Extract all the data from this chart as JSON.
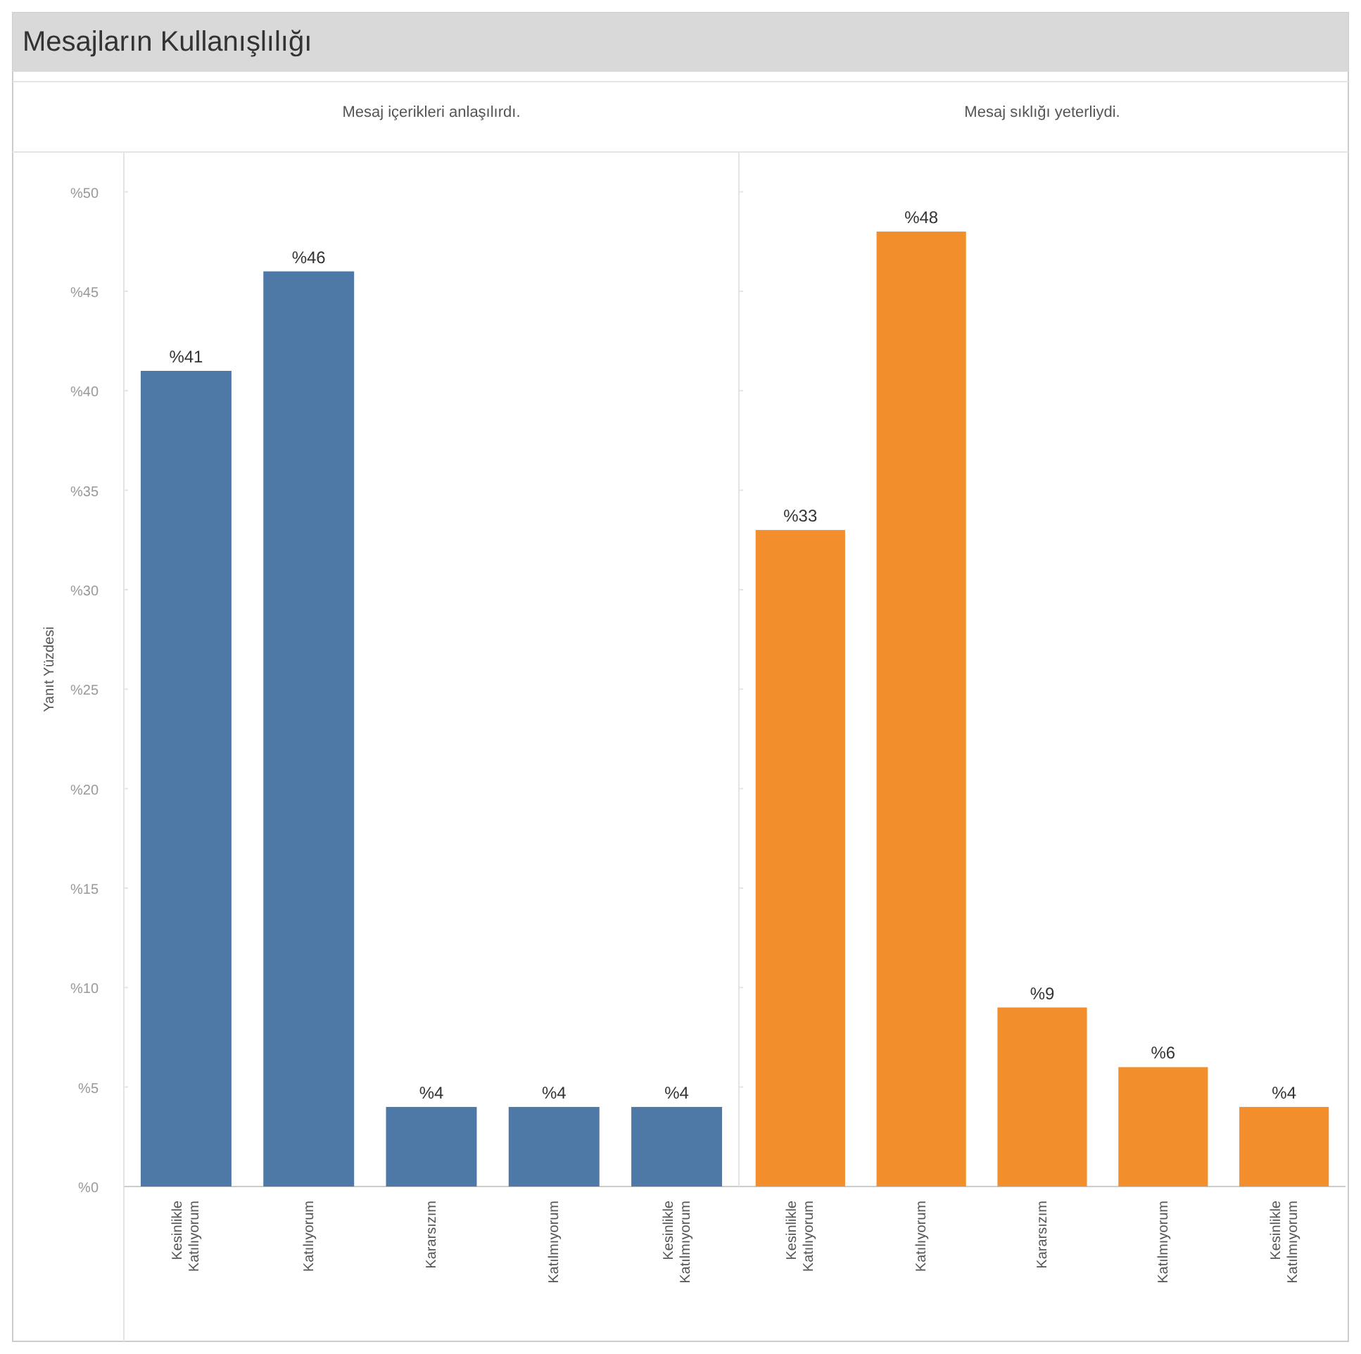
{
  "chart_data": [
    {
      "type": "bar",
      "title": "Mesaj içerikleri anlaşılırdı.",
      "ylabel": "Yanıt Yüzdesi",
      "annotations": [
        "Mesajların Kullanışlılığı"
      ],
      "categories": [
        "Kesinlikle Katılıyorum",
        "Katılıyorum",
        "Kararsızım",
        "Katılmıyorum",
        "Kesinlikle Katılmıyorum"
      ],
      "values": [
        41,
        46,
        4,
        4,
        4
      ],
      "value_labels": [
        "%41",
        "%46",
        "%4",
        "%4",
        "%4"
      ],
      "color": "#4e79a7",
      "ylim": [
        0,
        52
      ],
      "yticks": [
        {
          "value": 0,
          "label": "%0"
        },
        {
          "value": 5,
          "label": "%5"
        },
        {
          "value": 10,
          "label": "%10"
        },
        {
          "value": 15,
          "label": "%15"
        },
        {
          "value": 20,
          "label": "%20"
        },
        {
          "value": 25,
          "label": "%25"
        },
        {
          "value": 30,
          "label": "%30"
        },
        {
          "value": 35,
          "label": "%35"
        },
        {
          "value": 40,
          "label": "%40"
        },
        {
          "value": 45,
          "label": "%45"
        },
        {
          "value": 50,
          "label": "%50"
        }
      ]
    },
    {
      "type": "bar",
      "title": "Mesaj sıklığı yeterliydi.",
      "categories": [
        "Kesinlikle Katılıyorum",
        "Katılıyorum",
        "Kararsızım",
        "Katılmıyorum",
        "Kesinlikle Katılmıyorum"
      ],
      "values": [
        33,
        48,
        9,
        6,
        4
      ],
      "value_labels": [
        "%33",
        "%48",
        "%9",
        "%6",
        "%4"
      ],
      "color": "#f28e2b",
      "ylim": [
        0,
        52
      ],
      "yticks": [
        {
          "value": 0,
          "label": null
        },
        {
          "value": 5,
          "label": null
        },
        {
          "value": 10,
          "label": null
        },
        {
          "value": 15,
          "label": null
        },
        {
          "value": 20,
          "label": null
        },
        {
          "value": 25,
          "label": null
        },
        {
          "value": 30,
          "label": null
        },
        {
          "value": 35,
          "label": null
        },
        {
          "value": 40,
          "label": null
        },
        {
          "value": 45,
          "label": null
        },
        {
          "value": 50,
          "label": null
        }
      ],
      "tick_labels": "x"
    }
  ]
}
